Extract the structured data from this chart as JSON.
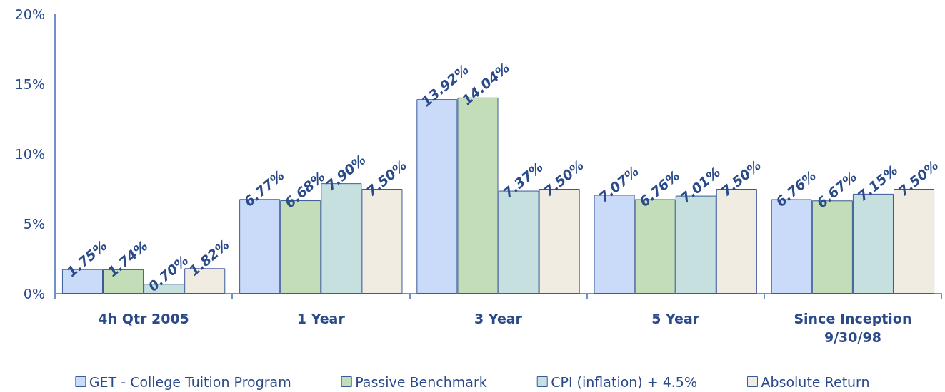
{
  "chart_data": {
    "type": "bar",
    "categories": [
      "4h Qtr 2005",
      "1 Year",
      "3 Year",
      "5 Year",
      "Since Inception\n9/30/98"
    ],
    "series": [
      {
        "name": "GET - College Tuition Program",
        "color": "#c9dbf8",
        "values": [
          1.75,
          6.77,
          13.92,
          7.07,
          6.76
        ],
        "value_labels": [
          "1.75%",
          "6.77%",
          "13.92%",
          "7.07%",
          "6.76%"
        ]
      },
      {
        "name": "Passive Benchmark",
        "color": "#c3ddb8",
        "values": [
          1.74,
          6.68,
          14.04,
          6.76,
          6.67
        ],
        "value_labels": [
          "1.74%",
          "6.68%",
          "14.04%",
          "6.76%",
          "6.67%"
        ]
      },
      {
        "name": "CPI (inflation) + 4.5%",
        "color": "#c6e0e0",
        "values": [
          0.7,
          7.9,
          7.37,
          7.01,
          7.15
        ],
        "value_labels": [
          "0.70%",
          "7.90%",
          "7.37%",
          "7.01%",
          "7.15%"
        ]
      },
      {
        "name": "Absolute Return",
        "color": "#f0ece1",
        "values": [
          1.82,
          7.5,
          7.5,
          7.5,
          7.5
        ],
        "value_labels": [
          "1.82%",
          "7.50%",
          "7.50%",
          "7.50%",
          "7.50%"
        ]
      }
    ],
    "ylim": [
      0,
      20
    ],
    "yticks": [
      {
        "value": 0,
        "label": "0%"
      },
      {
        "value": 5,
        "label": "5%"
      },
      {
        "value": 10,
        "label": "10%"
      },
      {
        "value": 15,
        "label": "15%"
      },
      {
        "value": 20,
        "label": "20%"
      }
    ],
    "grid": false,
    "legend": "bottom"
  }
}
